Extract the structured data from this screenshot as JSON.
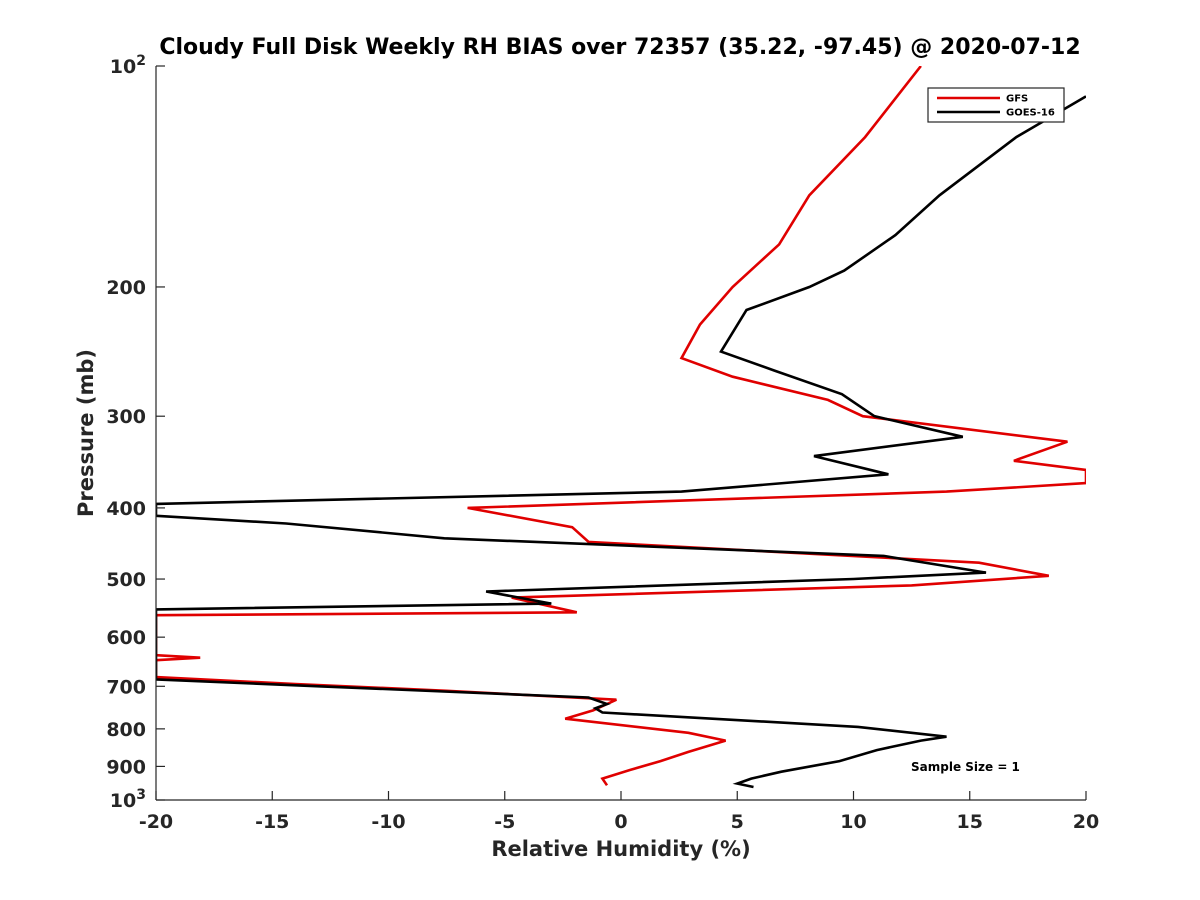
{
  "chart_data": {
    "type": "line",
    "title": "Cloudy Full Disk Weekly RH BIAS over 72357 (35.22, -97.45) @ 2020-07-12",
    "xlabel": "Relative Humidity (%)",
    "ylabel": "Pressure (mb)",
    "xlim": [
      -20,
      20
    ],
    "ylim": [
      100,
      1000
    ],
    "y_scale": "log",
    "y_reversed": true,
    "grid": false,
    "legend_position": "top-right",
    "x_ticks": [
      "-20",
      "-15",
      "-10",
      "-5",
      "0",
      "5",
      "10",
      "15",
      "20"
    ],
    "x_tick_values": [
      -20,
      -15,
      -10,
      -5,
      0,
      5,
      10,
      15,
      20
    ],
    "y_ticks": [
      {
        "value": 100,
        "base": "10",
        "exp": "2"
      },
      {
        "value": 200,
        "label": "200"
      },
      {
        "value": 300,
        "label": "300"
      },
      {
        "value": 400,
        "label": "400"
      },
      {
        "value": 500,
        "label": "500"
      },
      {
        "value": 600,
        "label": "600"
      },
      {
        "value": 700,
        "label": "700"
      },
      {
        "value": 800,
        "label": "800"
      },
      {
        "value": 900,
        "label": "900"
      },
      {
        "value": 1000,
        "base": "10",
        "exp": "3"
      }
    ],
    "annotation": "Sample Size = 1",
    "series": [
      {
        "name": "GFS",
        "color": "#e00000",
        "points": [
          [
            12.9,
            100
          ],
          [
            10.5,
            125
          ],
          [
            8.1,
            150
          ],
          [
            6.8,
            175
          ],
          [
            4.8,
            200
          ],
          [
            3.4,
            225
          ],
          [
            2.6,
            250
          ],
          [
            4.8,
            265
          ],
          [
            8.9,
            285
          ],
          [
            10.4,
            300
          ],
          [
            19.2,
            325
          ],
          [
            16.9,
            345
          ],
          [
            20,
            355
          ],
          [
            20,
            370
          ],
          [
            14,
            380
          ],
          [
            -6.6,
            400
          ],
          [
            -2.1,
            425
          ],
          [
            -1.4,
            445
          ],
          [
            15.4,
            475
          ],
          [
            18.4,
            495
          ],
          [
            12.5,
            510
          ],
          [
            -4.7,
            530
          ],
          [
            -1.9,
            555
          ],
          [
            -20,
            560
          ],
          [
            -20,
            635
          ],
          [
            -18.1,
            640
          ],
          [
            -20,
            645
          ],
          [
            -20,
            680
          ],
          [
            -14,
            695
          ],
          [
            -7.5,
            710
          ],
          [
            -0.2,
            730
          ],
          [
            -1.2,
            755
          ],
          [
            -2.4,
            775
          ],
          [
            2.9,
            810
          ],
          [
            4.5,
            830
          ],
          [
            2.9,
            860
          ],
          [
            1.7,
            885
          ],
          [
            0.4,
            910
          ],
          [
            -0.8,
            935
          ],
          [
            -0.6,
            955
          ]
        ]
      },
      {
        "name": "GOES-16",
        "color": "#000000",
        "points": [
          [
            20,
            110
          ],
          [
            17,
            125
          ],
          [
            13.7,
            150
          ],
          [
            11.8,
            170
          ],
          [
            9.6,
            190
          ],
          [
            8.1,
            200
          ],
          [
            5.4,
            215
          ],
          [
            4.3,
            245
          ],
          [
            6.6,
            260
          ],
          [
            9.5,
            280
          ],
          [
            10.9,
            300
          ],
          [
            14.7,
            320
          ],
          [
            8.3,
            340
          ],
          [
            11.5,
            360
          ],
          [
            2.6,
            380
          ],
          [
            -20,
            395
          ],
          [
            -20,
            410
          ],
          [
            -14.4,
            420
          ],
          [
            -7.6,
            440
          ],
          [
            11.3,
            465
          ],
          [
            15.7,
            490
          ],
          [
            10,
            500
          ],
          [
            -5.8,
            520
          ],
          [
            -3,
            540
          ],
          [
            -20,
            550
          ],
          [
            -20,
            645
          ],
          [
            -20,
            685
          ],
          [
            -13,
            700
          ],
          [
            -1.4,
            725
          ],
          [
            -0.6,
            740
          ],
          [
            -1.1,
            750
          ],
          [
            -0.8,
            760
          ],
          [
            10.2,
            795
          ],
          [
            14,
            820
          ],
          [
            12.9,
            830
          ],
          [
            11,
            855
          ],
          [
            9.4,
            885
          ],
          [
            6.9,
            915
          ],
          [
            5.6,
            935
          ],
          [
            5,
            950
          ],
          [
            5.7,
            960
          ]
        ]
      }
    ]
  }
}
